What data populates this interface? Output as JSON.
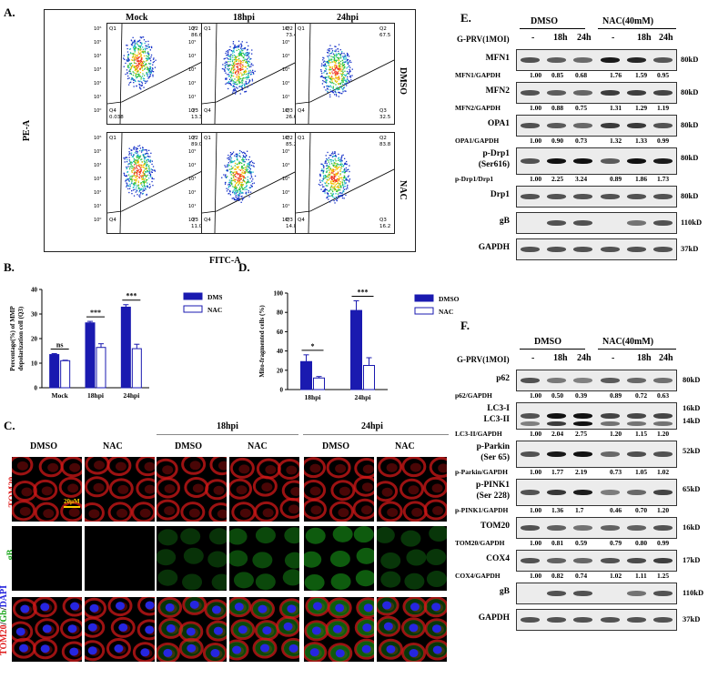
{
  "panel_letters": {
    "A": "A.",
    "B": "B.",
    "C": "C.",
    "D": "D.",
    "E": "E.",
    "F": "F."
  },
  "panelA": {
    "columns": [
      "Mock",
      "18hpi",
      "24hpi"
    ],
    "rows": [
      "DMSO",
      "NAC"
    ],
    "xlabel": "FITC-A",
    "ylabel": "PE-A",
    "quadrants": {
      "q1": "Q1",
      "q2": "Q2",
      "q3": "Q3",
      "q4": "Q4"
    },
    "values": [
      {
        "q2": "86.6",
        "q3": "13.3",
        "q4": "0.038"
      },
      {
        "q2": "73.4",
        "q3": "26.6",
        "q4": ""
      },
      {
        "q2": "67.5",
        "q3": "32.5",
        "q4": ""
      },
      {
        "q2": "89.0",
        "q3": "11.0",
        "q4": ""
      },
      {
        "q2": "85.2",
        "q3": "14.8",
        "q4": ""
      },
      {
        "q2": "83.8",
        "q3": "16.2",
        "q4": ""
      }
    ],
    "axis_ticks": [
      "10⁶",
      "10⁵",
      "10⁴",
      "10³",
      "10²",
      "10¹",
      "10⁰"
    ]
  },
  "chart_data": [
    {
      "type": "bar",
      "title": "",
      "ylabel": "Percentage(%) of MMP depolarization cell (Q3)",
      "xlabel": "",
      "categories": [
        "Mock",
        "18hpi",
        "24hpi"
      ],
      "ylim": [
        0,
        40
      ],
      "yticks": [
        "0",
        "10",
        "20",
        "30",
        "40"
      ],
      "series": [
        {
          "name": "DMSO",
          "values": [
            13.5,
            26.4,
            32.8
          ],
          "errors": [
            0.4,
            0.6,
            1.0
          ]
        },
        {
          "name": "NAC",
          "values": [
            11.0,
            16.4,
            15.9
          ],
          "errors": [
            0.2,
            1.5,
            1.8
          ]
        }
      ],
      "significance": [
        "ns",
        "***",
        "***"
      ],
      "legend_position": "top-right"
    },
    {
      "type": "bar",
      "title": "",
      "ylabel": "Mito-fragmented cells (%)",
      "xlabel": "",
      "categories": [
        "18hpi",
        "24hpi"
      ],
      "ylim": [
        0,
        100
      ],
      "yticks": [
        "0",
        "20",
        "40",
        "60",
        "80",
        "100"
      ],
      "series": [
        {
          "name": "DMSO",
          "values": [
            29,
            82
          ],
          "errors": [
            7,
            10
          ]
        },
        {
          "name": "NAC",
          "values": [
            12,
            25
          ],
          "errors": [
            1.5,
            8
          ]
        }
      ],
      "significance": [
        "*",
        "***"
      ],
      "legend_position": "top-right"
    }
  ],
  "panelC": {
    "headers_top": [
      "18hpi",
      "24hpi"
    ],
    "headers": [
      "DMSO",
      "NAC",
      "DMSO",
      "NAC",
      "DMSO",
      "NAC"
    ],
    "row_labels": [
      "TOM20",
      "gB"
    ],
    "merge_label": {
      "a": "TOM20",
      "s1": "/",
      "b": "Gb",
      "s2": "/",
      "c": "DAPI"
    },
    "scale": "20μM"
  },
  "panelE": {
    "groups": [
      "DMSO",
      "NAC(40mM)"
    ],
    "infection_label": "G-PRV(1MOI)",
    "lanes": [
      "-",
      "18h",
      "24h",
      "-",
      "18h",
      "24h"
    ],
    "blots": [
      {
        "name": "MFN1",
        "kd": "80kD",
        "ratio_label": "MFN1/GAPDH",
        "ratios": [
          "1.00",
          "0.85",
          "0.68",
          "1.76",
          "1.59",
          "0.95"
        ]
      },
      {
        "name": "MFN2",
        "kd": "80kD",
        "ratio_label": "MFN2/GAPDH",
        "ratios": [
          "1.00",
          "0.88",
          "0.75",
          "1.31",
          "1.29",
          "1.19"
        ]
      },
      {
        "name": "OPA1",
        "kd": "80kD",
        "ratio_label": "OPA1/GAPDH",
        "ratios": [
          "1.00",
          "0.90",
          "0.73",
          "1.32",
          "1.33",
          "0.99"
        ]
      },
      {
        "name": "p-Drp1",
        "name2": "(Ser616)",
        "kd": "80kD",
        "ratio_label": "p-Drp1/Drp1",
        "ratios": [
          "1.00",
          "2.25",
          "3.24",
          "0.89",
          "1.86",
          "1.73"
        ]
      },
      {
        "name": "Drp1",
        "kd": "80kD"
      },
      {
        "name": "gB",
        "kd": "110kD"
      },
      {
        "name": "GAPDH",
        "kd": "37kD"
      }
    ]
  },
  "panelF": {
    "groups": [
      "DMSO",
      "NAC(40mM)"
    ],
    "infection_label": "G-PRV(1MOI)",
    "lanes": [
      "-",
      "18h",
      "24h",
      "-",
      "18h",
      "24h"
    ],
    "blots": [
      {
        "name": "p62",
        "kd": "80kD",
        "ratio_label": "p62/GAPDH",
        "ratios": [
          "1.00",
          "0.50",
          "0.39",
          "0.89",
          "0.72",
          "0.63"
        ]
      },
      {
        "name": "LC3-I",
        "name2": "LC3-II",
        "kd": "16kD",
        "kd2": "14kD",
        "ratio_label": "LC3-II/GAPDH",
        "ratios": [
          "1.00",
          "2.04",
          "2.75",
          "1.20",
          "1.15",
          "1.20"
        ]
      },
      {
        "name": "p-Parkin",
        "name2": "(Ser 65)",
        "kd": "52kD",
        "ratio_label": "p-Parkin/GAPDH",
        "ratios": [
          "1.00",
          "1.77",
          "2.19",
          "0.73",
          "1.05",
          "1.02"
        ]
      },
      {
        "name": "p-PINK1",
        "name2": "(Ser 228)",
        "kd": "65kD",
        "ratio_label": "p-PINK1/GAPDH",
        "ratios": [
          "1.00",
          "1.36",
          "1.7",
          "0.46",
          "0.70",
          "1.20"
        ]
      },
      {
        "name": "TOM20",
        "kd": "16kD",
        "ratio_label": "TOM20/GAPDH",
        "ratios": [
          "1.00",
          "0.81",
          "0.59",
          "0.79",
          "0.80",
          "0.99"
        ]
      },
      {
        "name": "COX4",
        "kd": "17kD",
        "ratio_label": "COX4/GAPDH",
        "ratios": [
          "1.00",
          "0.82",
          "0.74",
          "1.02",
          "1.11",
          "1.25"
        ]
      },
      {
        "name": "gB",
        "kd": "110kD"
      },
      {
        "name": "GAPDH",
        "kd": "37kD"
      }
    ]
  },
  "colors": {
    "dmso": "#1a1ab0",
    "nac_edge": "#1a1ab0",
    "tom20": "#e02020",
    "gb": "#19a51a",
    "dapi": "#2222dd"
  }
}
